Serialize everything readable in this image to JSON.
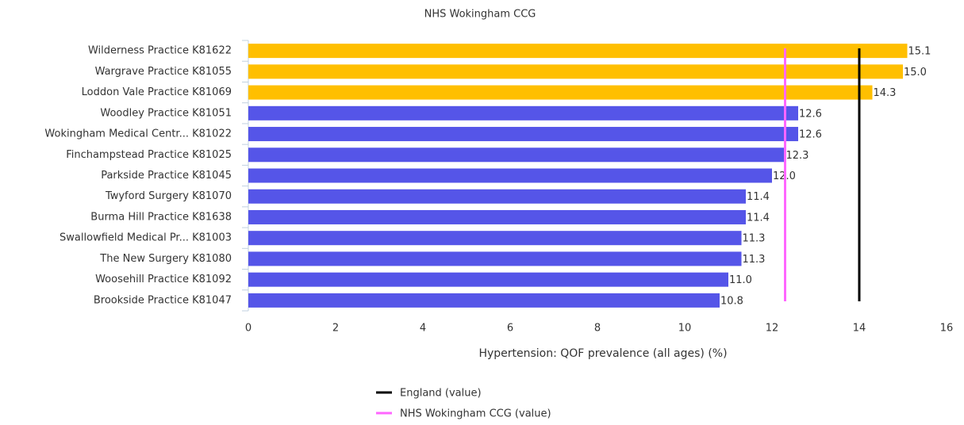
{
  "chart_data": {
    "type": "hbar",
    "title": "NHS Wokingham CCG",
    "x_label": "Hypertension: QOF prevalence (all ages) (%)",
    "categories": [
      "Wilderness Practice K81622",
      "Wargrave Practice K81055",
      "Loddon Vale Practice K81069",
      "Woodley Practice K81051",
      "Wokingham Medical Centr... K81022",
      "Finchampstead Practice K81025",
      "Parkside Practice K81045",
      "Twyford Surgery K81070",
      "Burma Hill Practice K81638",
      "Swallowfield Medical Pr... K81003",
      "The New Surgery K81080",
      "Woosehill Practice K81092",
      "Brookside Practice K81047"
    ],
    "values": [
      15.1,
      15.0,
      14.3,
      12.6,
      12.6,
      12.3,
      12.0,
      11.4,
      11.4,
      11.3,
      11.3,
      11.0,
      10.8
    ],
    "value_labels": [
      "15.1",
      "15.0",
      "14.3",
      "12.6",
      "12.6",
      "12.3",
      "12.0",
      "11.4",
      "11.4",
      "11.3",
      "11.3",
      "11.0",
      "10.8"
    ],
    "colors": [
      "#ffbf00",
      "#ffbf00",
      "#ffbf00",
      "#5555e8",
      "#5555e8",
      "#5555e8",
      "#5555e8",
      "#5555e8",
      "#5555e8",
      "#5555e8",
      "#5555e8",
      "#5555e8",
      "#5555e8"
    ],
    "reference_lines": [
      {
        "name": "England (value)",
        "value": 14.0,
        "color": "#000000"
      },
      {
        "name": "NHS Wokingham CCG (value)",
        "value": 12.3,
        "color": "#ff66ff"
      }
    ],
    "xlim": [
      0,
      16
    ],
    "xticks": [
      0,
      2,
      4,
      6,
      8,
      10,
      12,
      14,
      16
    ]
  }
}
